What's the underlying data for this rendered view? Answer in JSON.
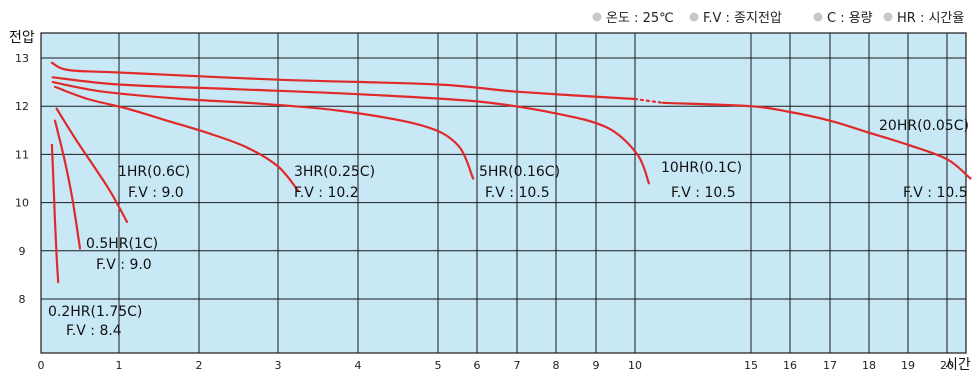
{
  "legend": [
    {
      "text": "온도 : 25℃"
    },
    {
      "text": "F.V : 종지전압"
    },
    {
      "text": "C : 용량"
    },
    {
      "text": "HR : 시간율"
    }
  ],
  "colors": {
    "plot_bg": "#c8e8f6",
    "grid": "#1a1a1a",
    "curve": "#e02a2a",
    "legend_dot": "#c8c8c8"
  },
  "chart_data": {
    "type": "line",
    "title": "",
    "xlabel": "시간",
    "ylabel": "전압",
    "ylim": [
      7.5,
      13.2
    ],
    "x_ticks": [
      "0",
      "1",
      "2",
      "3",
      "4",
      "5",
      "6",
      "7",
      "8",
      "9",
      "10",
      "15",
      "16",
      "17",
      "18",
      "19",
      "20"
    ],
    "y_ticks": [
      "8",
      "9",
      "10",
      "11",
      "12",
      "13"
    ],
    "grid": true,
    "legend_position": "top-right",
    "series": [
      {
        "label": "0.2HR(1.75C)",
        "fv": "F.V : 8.4",
        "points": [
          [
            0.14,
            11.2
          ],
          [
            0.16,
            10.4
          ],
          [
            0.18,
            9.6
          ],
          [
            0.2,
            8.9
          ],
          [
            0.22,
            8.35
          ]
        ]
      },
      {
        "label": "0.5HR(1C)",
        "fv": "F.V : 9.0",
        "points": [
          [
            0.18,
            11.7
          ],
          [
            0.3,
            10.9
          ],
          [
            0.4,
            10.1
          ],
          [
            0.5,
            9.05
          ]
        ]
      },
      {
        "label": "1HR(0.6C)",
        "fv": "F.V : 9.0",
        "points": [
          [
            0.2,
            11.95
          ],
          [
            0.45,
            11.3
          ],
          [
            0.7,
            10.7
          ],
          [
            0.9,
            10.2
          ],
          [
            1.1,
            9.6
          ]
        ]
      },
      {
        "label": "3HR(0.25C)",
        "fv": "F.V : 10.2",
        "points": [
          [
            0.18,
            12.4
          ],
          [
            0.6,
            12.15
          ],
          [
            1.1,
            11.95
          ],
          [
            1.6,
            11.7
          ],
          [
            2.1,
            11.45
          ],
          [
            2.6,
            11.15
          ],
          [
            3.0,
            10.75
          ],
          [
            3.25,
            10.25
          ]
        ]
      },
      {
        "label": "5HR(0.16C)",
        "fv": "F.V : 10.5",
        "points": [
          [
            0.15,
            12.5
          ],
          [
            0.8,
            12.3
          ],
          [
            1.8,
            12.15
          ],
          [
            2.8,
            12.05
          ],
          [
            3.8,
            11.9
          ],
          [
            4.8,
            11.6
          ],
          [
            5.5,
            11.2
          ],
          [
            5.9,
            10.5
          ]
        ]
      },
      {
        "label": "10HR(0.1C)",
        "fv": "F.V : 10.5",
        "points": [
          [
            0.15,
            12.6
          ],
          [
            1.0,
            12.45
          ],
          [
            2.5,
            12.35
          ],
          [
            4.0,
            12.25
          ],
          [
            6.0,
            12.1
          ],
          [
            8.0,
            11.85
          ],
          [
            9.3,
            11.55
          ],
          [
            10.1,
            11.0
          ],
          [
            10.6,
            10.4
          ]
        ]
      },
      {
        "label": "20HR(0.05C)",
        "fv": "F.V : 10.5",
        "points": [
          [
            0.14,
            12.9
          ],
          [
            0.35,
            12.75
          ],
          [
            1.0,
            12.7
          ],
          [
            3.0,
            12.55
          ],
          [
            5.0,
            12.45
          ],
          [
            7.0,
            12.3
          ],
          [
            10.0,
            12.15
          ]
        ],
        "dotted_points": [
          [
            10.0,
            12.15
          ],
          [
            11.2,
            12.07
          ]
        ],
        "points_after": [
          [
            11.2,
            12.07
          ],
          [
            15.0,
            12.0
          ],
          [
            16.0,
            11.88
          ],
          [
            17.0,
            11.7
          ],
          [
            18.0,
            11.45
          ],
          [
            19.0,
            11.2
          ],
          [
            20.0,
            10.9
          ],
          [
            20.6,
            10.5
          ]
        ]
      }
    ]
  }
}
